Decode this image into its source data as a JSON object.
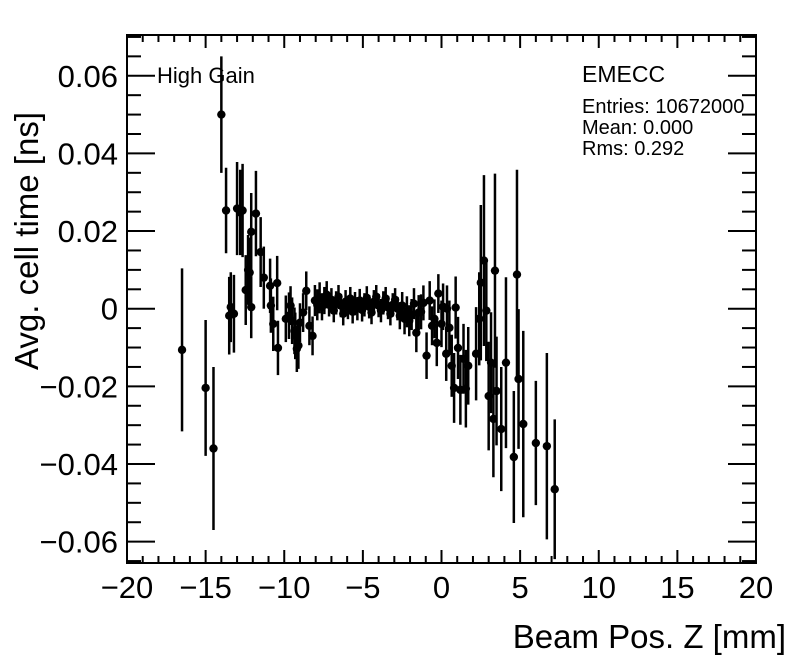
{
  "chart_data": {
    "type": "scatter",
    "title": "",
    "xlabel": "Beam Pos. Z [mm]",
    "ylabel": "Avg. cell time [ns]",
    "xlim": [
      -20,
      20
    ],
    "ylim": [
      -0.0655,
      0.0705
    ],
    "x_major_step": 5,
    "x_minor_step": 1,
    "y_major_step": 0.02,
    "y_minor_step": 0.005,
    "grid": false,
    "legend": false,
    "background_color": "#ffffff",
    "frame_color": "#000000",
    "marker_color": "#000000",
    "x_ticks": [
      {
        "v": -20,
        "label": "−20"
      },
      {
        "v": -15,
        "label": "−15"
      },
      {
        "v": -10,
        "label": "−10"
      },
      {
        "v": -5,
        "label": "−5"
      },
      {
        "v": 0,
        "label": "0"
      },
      {
        "v": 5,
        "label": "5"
      },
      {
        "v": 10,
        "label": "10"
      },
      {
        "v": 15,
        "label": "15"
      },
      {
        "v": 20,
        "label": "20"
      }
    ],
    "y_ticks": [
      {
        "v": 0.06,
        "label": "0.06"
      },
      {
        "v": 0.04,
        "label": "0.04"
      },
      {
        "v": 0.02,
        "label": "0.02"
      },
      {
        "v": 0,
        "label": "0"
      },
      {
        "v": -0.02,
        "label": "−0.02"
      },
      {
        "v": -0.04,
        "label": "−0.04"
      },
      {
        "v": -0.06,
        "label": "−0.06"
      }
    ],
    "annotations": {
      "gain": "High Gain",
      "detector": "EMECC",
      "stats_entries": "Entries: 10672000",
      "stats_mean": "Mean: 0.000",
      "stats_rms": "Rms: 0.292"
    },
    "points": [
      [
        -16.5,
        -0.0106,
        0.021
      ],
      [
        -15.0,
        -0.0204,
        0.0175
      ],
      [
        -14.5,
        -0.036,
        0.021
      ],
      [
        -14.0,
        0.05,
        0.015
      ],
      [
        -13.7,
        0.0253,
        0.011
      ],
      [
        -13.5,
        -0.0018,
        0.01
      ],
      [
        -13.4,
        0.0004,
        0.009
      ],
      [
        -13.2,
        -0.0013,
        0.01
      ],
      [
        -13.0,
        0.0258,
        0.012
      ],
      [
        -12.8,
        0.0248,
        0.011
      ],
      [
        -12.65,
        0.0253,
        0.012
      ],
      [
        -12.45,
        0.0048,
        0.009
      ],
      [
        -12.3,
        0.01,
        0.009
      ],
      [
        -12.2,
        0.0093,
        0.009
      ],
      [
        -12.1,
        0.0198,
        0.01
      ],
      [
        -12.1,
        0.0004,
        0.008
      ],
      [
        -11.8,
        0.0245,
        0.011
      ],
      [
        -11.5,
        0.0146,
        0.009
      ],
      [
        -11.3,
        0.008,
        0.008
      ],
      [
        -10.9,
        0.0059,
        0.007
      ],
      [
        -10.85,
        0.0008,
        0.007
      ],
      [
        -10.7,
        -0.0039,
        0.007
      ],
      [
        -10.45,
        0.0066,
        0.007
      ],
      [
        -10.4,
        -0.0101,
        0.007
      ],
      [
        -9.9,
        -0.0026,
        0.006
      ],
      [
        -9.7,
        -0.0018,
        0.006
      ],
      [
        -9.6,
        0.0008,
        0.005
      ],
      [
        -9.5,
        -0.0031,
        0.006
      ],
      [
        -9.35,
        -0.0057,
        0.006
      ],
      [
        -9.3,
        -0.007,
        0.006
      ],
      [
        -9.2,
        -0.0103,
        0.006
      ],
      [
        -9.1,
        -0.0095,
        0.006
      ],
      [
        -9.0,
        -0.0036,
        0.005
      ],
      [
        -8.8,
        -0.001,
        0.005
      ],
      [
        -8.6,
        0.0046,
        0.005
      ],
      [
        -8.4,
        -0.0044,
        0.005
      ],
      [
        -8.2,
        -0.007,
        0.005
      ],
      [
        -8.05,
        0.0021,
        0.004
      ],
      [
        -7.9,
        0.001,
        0.004
      ],
      [
        -7.75,
        0.0028,
        0.004
      ],
      [
        -7.6,
        0.0005,
        0.0035
      ],
      [
        -7.45,
        0.0021,
        0.0035
      ],
      [
        -7.3,
        0.0036,
        0.0035
      ],
      [
        -7.15,
        0.001,
        0.003
      ],
      [
        -7.0,
        0.0023,
        0.003
      ],
      [
        -6.85,
        -0.0005,
        0.003
      ],
      [
        -6.7,
        0.0015,
        0.003
      ],
      [
        -6.55,
        0.0031,
        0.003
      ],
      [
        -6.4,
        0.0008,
        0.003
      ],
      [
        -6.25,
        -0.0013,
        0.003
      ],
      [
        -6.1,
        0.0018,
        0.003
      ],
      [
        -5.95,
        0.0003,
        0.003
      ],
      [
        -5.8,
        0.0026,
        0.003
      ],
      [
        -5.65,
        -0.0008,
        0.003
      ],
      [
        -5.5,
        0.0013,
        0.003
      ],
      [
        -5.35,
        0.0,
        0.003
      ],
      [
        -5.2,
        0.0021,
        0.003
      ],
      [
        -5.05,
        -0.0003,
        0.003
      ],
      [
        -4.9,
        0.001,
        0.003
      ],
      [
        -4.75,
        0.0028,
        0.003
      ],
      [
        -4.6,
        0.0005,
        0.003
      ],
      [
        -4.45,
        -0.001,
        0.003
      ],
      [
        -4.3,
        0.0018,
        0.003
      ],
      [
        -4.15,
        0.0031,
        0.003
      ],
      [
        -4.0,
        0.0008,
        0.003
      ],
      [
        -3.85,
        -0.0005,
        0.003
      ],
      [
        -3.7,
        0.0015,
        0.003
      ],
      [
        -3.55,
        0.0026,
        0.003
      ],
      [
        -3.4,
        0.0003,
        0.003
      ],
      [
        -3.25,
        -0.0013,
        0.003
      ],
      [
        -3.1,
        0.001,
        0.003
      ],
      [
        -2.95,
        0.0023,
        0.003
      ],
      [
        -2.8,
        0.0,
        0.003
      ],
      [
        -2.65,
        -0.0018,
        0.0035
      ],
      [
        -2.5,
        0.0008,
        0.0035
      ],
      [
        -2.35,
        -0.0026,
        0.004
      ],
      [
        -2.2,
        -0.0008,
        0.004
      ],
      [
        -2.05,
        -0.0031,
        0.004
      ],
      [
        -1.9,
        -0.0015,
        0.004
      ],
      [
        -1.75,
        0.0013,
        0.004
      ],
      [
        -1.6,
        -0.0062,
        0.005
      ],
      [
        -1.45,
        -0.001,
        0.0045
      ],
      [
        -1.3,
        -0.0008,
        0.0045
      ],
      [
        -1.15,
        0.0015,
        0.0045
      ],
      [
        -0.95,
        -0.0121,
        0.006
      ],
      [
        -0.75,
        0.0021,
        0.005
      ],
      [
        -0.6,
        -0.0044,
        0.005
      ],
      [
        -0.45,
        -0.0026,
        0.005
      ],
      [
        -0.3,
        -0.0088,
        0.006
      ],
      [
        -0.2,
        0.0039,
        0.005
      ],
      [
        0.0,
        -0.0039,
        0.006
      ],
      [
        0.1,
        0.0005,
        0.006
      ],
      [
        0.3,
        -0.0116,
        0.007
      ],
      [
        0.35,
        0.0,
        0.006
      ],
      [
        0.5,
        -0.0049,
        0.007
      ],
      [
        0.65,
        -0.0147,
        0.008
      ],
      [
        0.8,
        -0.0204,
        0.009
      ],
      [
        0.9,
        0.0003,
        0.008
      ],
      [
        1.05,
        -0.0101,
        0.008
      ],
      [
        1.2,
        -0.0209,
        0.009
      ],
      [
        1.4,
        -0.0129,
        0.009
      ],
      [
        1.55,
        -0.0206,
        0.01
      ],
      [
        1.7,
        -0.0147,
        0.01
      ],
      [
        2.2,
        -0.0116,
        0.012
      ],
      [
        2.4,
        -0.0026,
        0.012
      ],
      [
        2.5,
        0.0067,
        0.02
      ],
      [
        2.7,
        0.0124,
        0.022
      ],
      [
        2.85,
        -0.0005,
        0.013
      ],
      [
        3.0,
        -0.0225,
        0.014
      ],
      [
        3.15,
        -0.0139,
        0.013
      ],
      [
        3.3,
        -0.0284,
        0.015
      ],
      [
        3.4,
        0.0098,
        0.025
      ],
      [
        3.5,
        -0.0212,
        0.014
      ],
      [
        3.8,
        -0.031,
        0.016
      ],
      [
        4.1,
        -0.0139,
        0.022
      ],
      [
        4.6,
        -0.0382,
        0.017
      ],
      [
        4.8,
        0.0088,
        0.027
      ],
      [
        4.9,
        -0.0181,
        0.018
      ],
      [
        5.2,
        -0.0297,
        0.024
      ],
      [
        6.0,
        -0.0346,
        0.016
      ],
      [
        6.7,
        -0.0354,
        0.024
      ],
      [
        7.2,
        -0.0465,
        0.018
      ]
    ]
  }
}
